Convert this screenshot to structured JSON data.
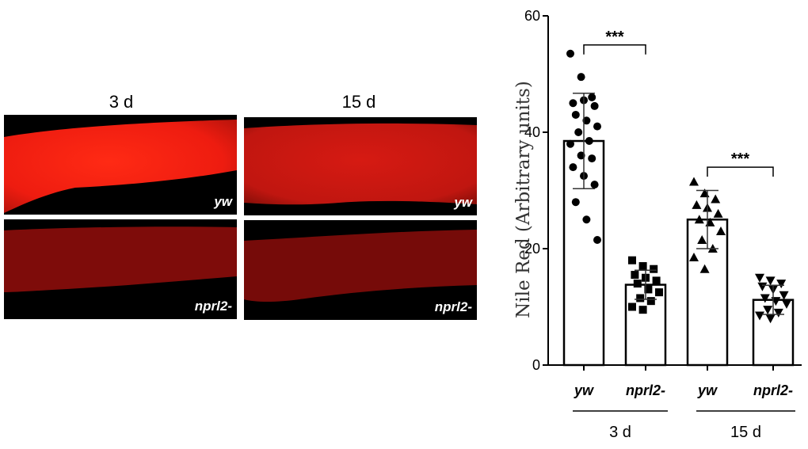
{
  "micrographs": {
    "column_titles": [
      "3 d",
      "15 d"
    ],
    "panels": [
      {
        "label": "yw",
        "intensity": "bright"
      },
      {
        "label": "yw",
        "intensity": "medium"
      },
      {
        "label": "nprl2-",
        "intensity": "dim"
      },
      {
        "label": "nprl2-",
        "intensity": "dim"
      }
    ],
    "colors": {
      "bright": "#f21a10",
      "medium": "#c41710",
      "dim": "#7a0a0a"
    }
  },
  "chart_data": {
    "type": "bar",
    "title": "",
    "ylabel": "Nile Red (Arbitrary units)",
    "xlabel": "",
    "ylim": [
      0,
      60
    ],
    "yticks": [
      0,
      20,
      40,
      60
    ],
    "categories": [
      "yw",
      "nprl2-",
      "yw",
      "nprl2-"
    ],
    "groups": [
      {
        "label": "3 d",
        "categories": [
          0,
          1
        ]
      },
      {
        "label": "15 d",
        "categories": [
          2,
          3
        ]
      }
    ],
    "series": [
      {
        "name": "yw 3 d",
        "mean": 38.5,
        "sd": 8.2,
        "marker": "circle",
        "points": [
          53.5,
          49.5,
          46,
          45,
          45.5,
          44.5,
          43,
          42,
          41,
          40,
          38.5,
          38,
          36,
          35.5,
          34,
          32.5,
          31,
          28,
          25,
          21.5
        ]
      },
      {
        "name": "nprl2- 3 d",
        "mean": 13.8,
        "sd": 2.5,
        "marker": "square",
        "points": [
          18,
          17,
          16.5,
          15.5,
          15,
          14.5,
          14,
          13,
          12.5,
          11.5,
          11,
          10,
          9.5
        ]
      },
      {
        "name": "yw 15 d",
        "mean": 25,
        "sd": 5,
        "marker": "triangle-up",
        "points": [
          31.5,
          29.5,
          28.5,
          27.5,
          27,
          26,
          25,
          24.5,
          23,
          21.5,
          20,
          18.5,
          16.5
        ]
      },
      {
        "name": "nprl2- 15 d",
        "mean": 11.2,
        "sd": 2.5,
        "marker": "triangle-down",
        "points": [
          15,
          14.5,
          14,
          13.5,
          13,
          12,
          11.5,
          11,
          10.5,
          9.5,
          9,
          8.5,
          8
        ]
      }
    ],
    "annotations": [
      {
        "text": "***",
        "between": [
          0,
          1
        ],
        "y": 55
      },
      {
        "text": "***",
        "between": [
          2,
          3
        ],
        "y": 34
      }
    ]
  }
}
